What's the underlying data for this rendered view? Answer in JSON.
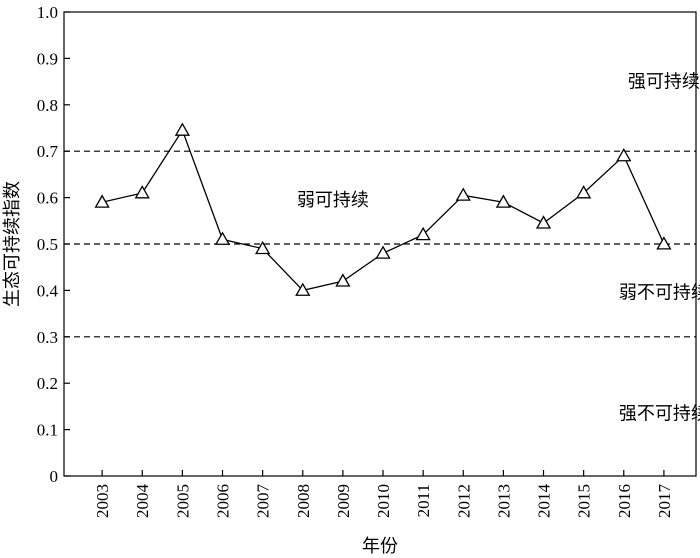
{
  "chart_data": {
    "type": "line",
    "title": "",
    "xlabel": "年份",
    "ylabel": "生态可持续指数",
    "x": [
      "2003",
      "2004",
      "2005",
      "2006",
      "2007",
      "2008",
      "2009",
      "2010",
      "2011",
      "2012",
      "2013",
      "2014",
      "2015",
      "2016",
      "2017"
    ],
    "series": [
      {
        "values": [
          0.59,
          0.61,
          0.745,
          0.51,
          0.49,
          0.4,
          0.42,
          0.48,
          0.52,
          0.605,
          0.59,
          0.545,
          0.61,
          0.69,
          0.5
        ]
      }
    ],
    "ylim": [
      0,
      1.0
    ],
    "yticks": [
      "0",
      "0.1",
      "0.2",
      "0.3",
      "0.4",
      "0.5",
      "0.6",
      "0.7",
      "0.8",
      "0.9",
      "1.0"
    ],
    "marker": "triangle-open",
    "grid": false,
    "reference_lines": [
      0.3,
      0.5,
      0.7
    ],
    "annotations": [
      {
        "text": "强可持续",
        "x": 15.0,
        "y": 0.85
      },
      {
        "text": "弱可持续",
        "x": 6.75,
        "y": 0.595
      },
      {
        "text": "弱不可持续",
        "x": 15.0,
        "y": 0.395
      },
      {
        "text": "强不可持续",
        "x": 15.0,
        "y": 0.135
      }
    ]
  }
}
